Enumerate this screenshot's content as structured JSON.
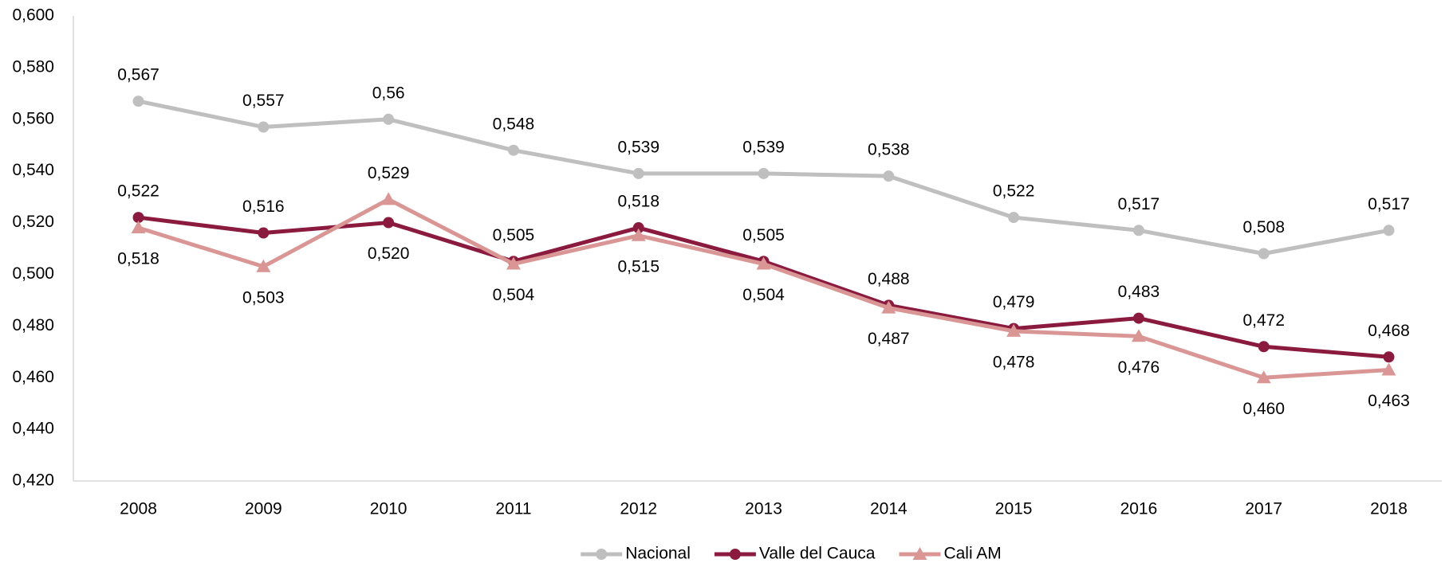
{
  "chart_data": {
    "type": "line",
    "categories": [
      "2008",
      "2009",
      "2010",
      "2011",
      "2012",
      "2013",
      "2014",
      "2015",
      "2016",
      "2017",
      "2018"
    ],
    "ylim": [
      0.42,
      0.6
    ],
    "yticks": [
      {
        "value": 0.42,
        "label": "0,420"
      },
      {
        "value": 0.44,
        "label": "0,440"
      },
      {
        "value": 0.46,
        "label": "0,460"
      },
      {
        "value": 0.48,
        "label": "0,480"
      },
      {
        "value": 0.5,
        "label": "0,500"
      },
      {
        "value": 0.52,
        "label": "0,520"
      },
      {
        "value": 0.54,
        "label": "0,540"
      },
      {
        "value": 0.56,
        "label": "0,560"
      },
      {
        "value": 0.58,
        "label": "0,580"
      },
      {
        "value": 0.6,
        "label": "0,600"
      }
    ],
    "legend": "bottom",
    "series": [
      {
        "name": "Nacional",
        "color": "#bfbfbf",
        "marker": "circle",
        "values": [
          0.567,
          0.557,
          0.56,
          0.548,
          0.539,
          0.539,
          0.538,
          0.522,
          0.517,
          0.508,
          0.517
        ],
        "value_labels": [
          "0,567",
          "0,557",
          "0,56",
          "0,548",
          "0,539",
          "0,539",
          "0,538",
          "0,522",
          "0,517",
          "0,508",
          "0,517"
        ]
      },
      {
        "name": "Valle del Cauca",
        "color": "#8b1a3f",
        "marker": "circle",
        "values": [
          0.522,
          0.516,
          0.52,
          0.505,
          0.518,
          0.505,
          0.488,
          0.479,
          0.483,
          0.472,
          0.468
        ],
        "value_labels": [
          "0,522",
          "0,516",
          "0,520",
          "0,505",
          "0,518",
          "0,505",
          "0,488",
          "0,479",
          "0,483",
          "0,472",
          "0,468"
        ]
      },
      {
        "name": "Cali AM",
        "color": "#d99694",
        "marker": "triangle",
        "values": [
          0.518,
          0.503,
          0.529,
          0.504,
          0.515,
          0.504,
          0.487,
          0.478,
          0.476,
          0.46,
          0.463
        ],
        "value_labels": [
          "0,518",
          "0,503",
          "0,529",
          "0,504",
          "0,515",
          "0,504",
          "0,487",
          "0,478",
          "0,476",
          "0,460",
          "0,463"
        ]
      }
    ]
  }
}
